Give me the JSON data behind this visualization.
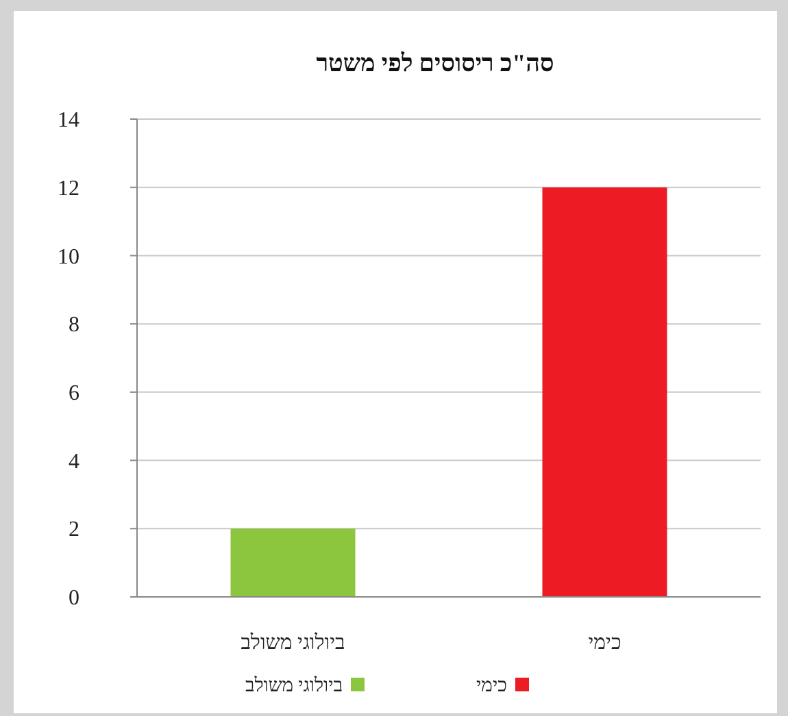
{
  "chart_data": {
    "type": "bar",
    "title": "סה\"כ ריסוסים לפי משטר",
    "categories": [
      "ביולוגי משולב",
      "כימי"
    ],
    "series": [
      {
        "name": "ביולוגי משולב",
        "color": "#8cc63f",
        "values": [
          2,
          null
        ]
      },
      {
        "name": "כימי",
        "color": "#ed1c24",
        "values": [
          null,
          12
        ]
      }
    ],
    "ylim": [
      0,
      14
    ],
    "yticks": [
      0,
      2,
      4,
      6,
      8,
      10,
      12,
      14
    ],
    "grid": "y",
    "legend": "bottom"
  }
}
